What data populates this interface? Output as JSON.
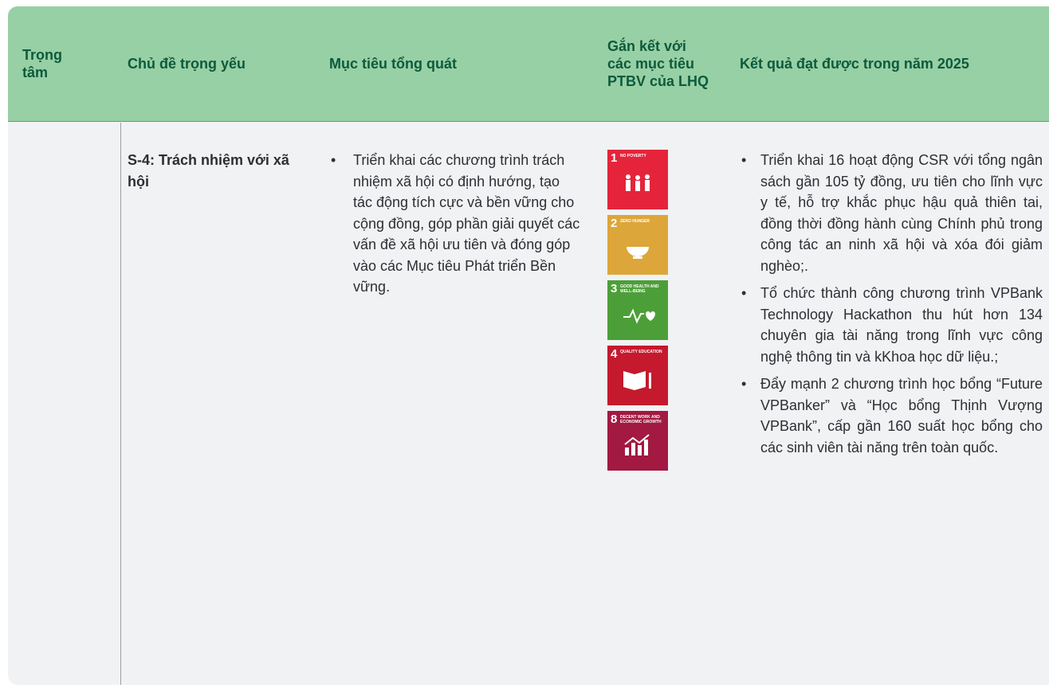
{
  "table": {
    "header": [
      "Trọng tâm",
      "Chủ đề trọng yếu",
      "Mục tiêu tổng quát",
      "Gắn kết với các mục tiêu PTBV của LHQ",
      "Kết quả đạt được trong năm 2025"
    ],
    "rows": [
      {
        "topic": "S-4: Trách nhiệm với xã hội",
        "objectives": [
          "Triển khai các chương trình trách nhiệm xã hội có định hướng, tạo tác động tích cực và bền vững cho cộng đồng, góp phần giải quyết các vấn đề xã hội ưu tiên và đóng góp vào các Mục tiêu Phát triển Bền vững."
        ],
        "sdgs": [
          {
            "number": "1",
            "label": "NO POVERTY"
          },
          {
            "number": "2",
            "label": "ZERO HUNGER"
          },
          {
            "number": "3",
            "label": "GOOD HEALTH AND WELL-BEING"
          },
          {
            "number": "4",
            "label": "QUALITY EDUCATION"
          },
          {
            "number": "8",
            "label": "DECENT WORK AND ECONOMIC GROWTH"
          }
        ],
        "results": [
          "Triển khai 16 hoạt động CSR với tổng ngân sách gần 105 tỷ đồng, ưu tiên cho lĩnh vực y tế, hỗ trợ khắc phục hậu quả thiên tai, đồng thời đồng hành cùng Chính phủ trong công tác an ninh xã hội và xóa đói giảm nghèo;.",
          "Tổ chức thành công chương trình VPBank Technology Hackathon thu hút hơn 134 chuyên gia tài năng trong lĩnh vực công nghệ thông tin và kKhoa học dữ liệu.;",
          "Đẩy mạnh 2 chương trình học bổng “Future VPBanker” và “Học bổng Thịnh Vượng VPBank”, cấp gần 160 suất học bổng cho các sinh viên tài năng trên toàn quốc."
        ]
      }
    ]
  }
}
